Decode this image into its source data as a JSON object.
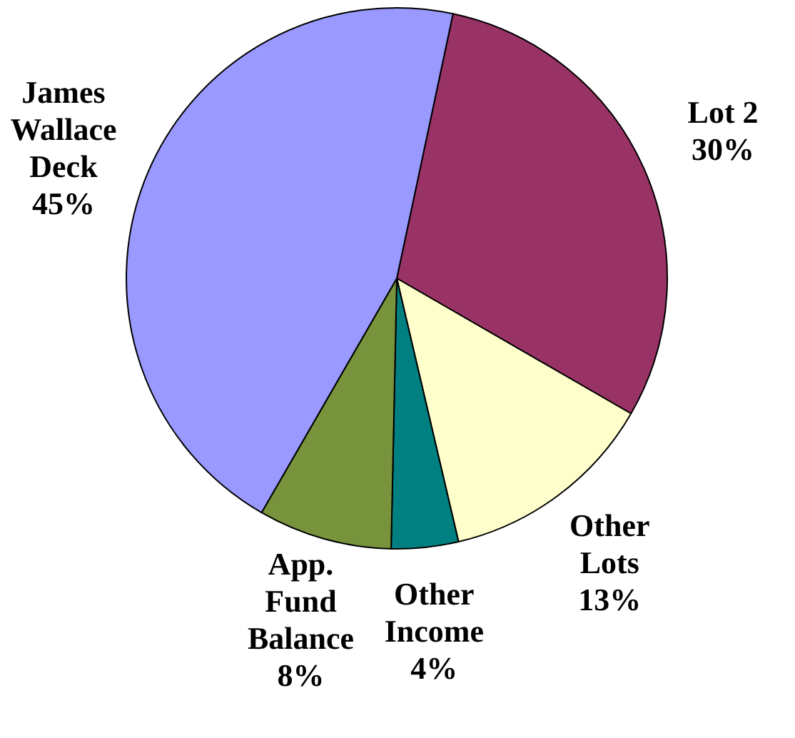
{
  "chart_data": {
    "type": "pie",
    "categories": [
      "Lot 2",
      "Other Lots",
      "Other Income",
      "App. Fund Balance",
      "James Wallace Deck"
    ],
    "values": [
      30,
      13,
      4,
      8,
      45
    ],
    "value_labels": [
      "30%",
      "13%",
      "4%",
      "8%",
      "45%"
    ],
    "colors": [
      "#993366",
      "#ffffcc",
      "#008080",
      "#77933c",
      "#9999ff"
    ],
    "legend": false
  }
}
